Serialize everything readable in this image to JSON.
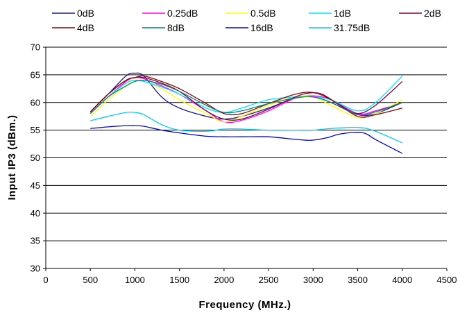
{
  "chart_data": {
    "type": "line",
    "xlabel": "Frequency (MHz.)",
    "ylabel": "Input IP3 (dBm.)",
    "xlim": [
      0,
      4500
    ],
    "ylim": [
      30,
      70
    ],
    "x_ticks": [
      "0",
      "500",
      "1000",
      "1500",
      "2000",
      "2500",
      "3000",
      "3500",
      "4000",
      "4500"
    ],
    "y_ticks": [
      "30",
      "35",
      "40",
      "45",
      "50",
      "55",
      "60",
      "65",
      "70"
    ],
    "grid": {
      "horizontal": true,
      "vertical": false
    },
    "legend_position": "top",
    "series": [
      {
        "name": "0dB",
        "color": "#1a1a8c",
        "points": [
          [
            500,
            58.3
          ],
          [
            700,
            61.5
          ],
          [
            900,
            64.8
          ],
          [
            1000,
            65.3
          ],
          [
            1100,
            64.8
          ],
          [
            1300,
            61.0
          ],
          [
            1500,
            59.0
          ],
          [
            1800,
            57.5
          ],
          [
            2000,
            57.0
          ],
          [
            2200,
            57.5
          ],
          [
            2500,
            59.0
          ],
          [
            2800,
            60.8
          ],
          [
            3000,
            61.0
          ],
          [
            3200,
            60.0
          ],
          [
            3500,
            57.8
          ],
          [
            3700,
            58.0
          ],
          [
            4000,
            60.0
          ]
        ]
      },
      {
        "name": "0.25dB",
        "color": "#ff00ff",
        "points": [
          [
            500,
            58.0
          ],
          [
            700,
            61.0
          ],
          [
            900,
            63.8
          ],
          [
            1000,
            64.5
          ],
          [
            1100,
            64.3
          ],
          [
            1300,
            63.0
          ],
          [
            1500,
            61.5
          ],
          [
            1800,
            58.5
          ],
          [
            2000,
            56.5
          ],
          [
            2200,
            56.8
          ],
          [
            2500,
            58.5
          ],
          [
            2800,
            60.8
          ],
          [
            3000,
            61.2
          ],
          [
            3200,
            60.5
          ],
          [
            3500,
            58.0
          ],
          [
            3700,
            58.5
          ],
          [
            4000,
            60.0
          ]
        ]
      },
      {
        "name": "0.5dB",
        "color": "#ffff00",
        "points": [
          [
            500,
            57.5
          ],
          [
            700,
            60.5
          ],
          [
            900,
            63.0
          ],
          [
            1000,
            64.0
          ],
          [
            1100,
            63.8
          ],
          [
            1300,
            62.5
          ],
          [
            1500,
            60.5
          ],
          [
            1800,
            58.0
          ],
          [
            2000,
            56.5
          ],
          [
            2200,
            57.5
          ],
          [
            2500,
            59.5
          ],
          [
            2800,
            61.0
          ],
          [
            3000,
            61.0
          ],
          [
            3200,
            59.5
          ],
          [
            3500,
            57.3
          ],
          [
            3700,
            58.0
          ],
          [
            4000,
            60.5
          ]
        ]
      },
      {
        "name": "1dB",
        "color": "#00e5ff",
        "points": [
          [
            500,
            58.0
          ],
          [
            700,
            61.0
          ],
          [
            900,
            63.5
          ],
          [
            1000,
            64.0
          ],
          [
            1100,
            63.8
          ],
          [
            1300,
            62.8
          ],
          [
            1500,
            61.5
          ],
          [
            1800,
            59.0
          ],
          [
            2000,
            58.2
          ],
          [
            2200,
            59.0
          ],
          [
            2500,
            60.5
          ],
          [
            2800,
            61.0
          ],
          [
            3000,
            61.0
          ],
          [
            3200,
            60.5
          ],
          [
            3500,
            58.5
          ],
          [
            3700,
            60.0
          ],
          [
            4000,
            64.8
          ]
        ]
      },
      {
        "name": "2dB",
        "color": "#800040",
        "points": [
          [
            500,
            58.3
          ],
          [
            700,
            61.5
          ],
          [
            900,
            64.0
          ],
          [
            1000,
            64.5
          ],
          [
            1100,
            64.5
          ],
          [
            1300,
            63.5
          ],
          [
            1500,
            62.0
          ],
          [
            1800,
            58.5
          ],
          [
            2000,
            57.0
          ],
          [
            2200,
            57.0
          ],
          [
            2500,
            58.8
          ],
          [
            2800,
            61.0
          ],
          [
            2950,
            61.7
          ],
          [
            3100,
            61.5
          ],
          [
            3300,
            59.5
          ],
          [
            3500,
            58.0
          ],
          [
            3700,
            59.5
          ],
          [
            4000,
            63.8
          ]
        ]
      },
      {
        "name": "4dB",
        "color": "#8b0000",
        "points": [
          [
            500,
            58.3
          ],
          [
            700,
            61.5
          ],
          [
            900,
            64.0
          ],
          [
            1000,
            64.5
          ],
          [
            1100,
            64.8
          ],
          [
            1300,
            63.8
          ],
          [
            1500,
            62.5
          ],
          [
            1800,
            59.8
          ],
          [
            2000,
            58.0
          ],
          [
            2200,
            58.0
          ],
          [
            2500,
            59.8
          ],
          [
            2800,
            61.5
          ],
          [
            3000,
            61.8
          ],
          [
            3200,
            60.5
          ],
          [
            3500,
            57.5
          ],
          [
            3700,
            57.8
          ],
          [
            4000,
            59.0
          ]
        ]
      },
      {
        "name": "8dB",
        "color": "#008080",
        "points": [
          [
            500,
            58.0
          ],
          [
            700,
            61.0
          ],
          [
            900,
            63.0
          ],
          [
            1000,
            63.8
          ],
          [
            1100,
            64.0
          ],
          [
            1300,
            63.3
          ],
          [
            1500,
            62.0
          ],
          [
            1800,
            59.5
          ],
          [
            2000,
            58.2
          ],
          [
            2200,
            58.5
          ],
          [
            2500,
            59.8
          ],
          [
            2800,
            60.8
          ],
          [
            3000,
            61.0
          ],
          [
            3200,
            60.0
          ],
          [
            3500,
            57.8
          ],
          [
            3700,
            58.3
          ],
          [
            4000,
            60.0
          ]
        ]
      },
      {
        "name": "16dB",
        "color": "#0000cd",
        "points": [
          [
            500,
            55.3
          ],
          [
            700,
            55.6
          ],
          [
            900,
            55.8
          ],
          [
            1000,
            55.8
          ],
          [
            1100,
            55.7
          ],
          [
            1300,
            55.0
          ],
          [
            1500,
            54.5
          ],
          [
            1800,
            53.9
          ],
          [
            2000,
            53.8
          ],
          [
            2200,
            53.8
          ],
          [
            2500,
            53.8
          ],
          [
            2700,
            53.5
          ],
          [
            2900,
            53.2
          ],
          [
            3000,
            53.2
          ],
          [
            3150,
            53.6
          ],
          [
            3300,
            54.3
          ],
          [
            3500,
            54.6
          ],
          [
            3600,
            54.3
          ],
          [
            3700,
            53.3
          ],
          [
            4000,
            50.8
          ]
        ]
      },
      {
        "name": "31.75dB",
        "color": "#00ccff",
        "points": [
          [
            500,
            56.7
          ],
          [
            700,
            57.5
          ],
          [
            900,
            58.2
          ],
          [
            1000,
            58.2
          ],
          [
            1100,
            57.8
          ],
          [
            1300,
            56.0
          ],
          [
            1500,
            55.0
          ],
          [
            1800,
            54.8
          ],
          [
            2000,
            55.2
          ],
          [
            2200,
            55.2
          ],
          [
            2500,
            55.0
          ],
          [
            2800,
            55.0
          ],
          [
            3000,
            55.0
          ],
          [
            3200,
            55.3
          ],
          [
            3500,
            55.5
          ],
          [
            3700,
            54.8
          ],
          [
            4000,
            52.7
          ]
        ]
      }
    ]
  }
}
